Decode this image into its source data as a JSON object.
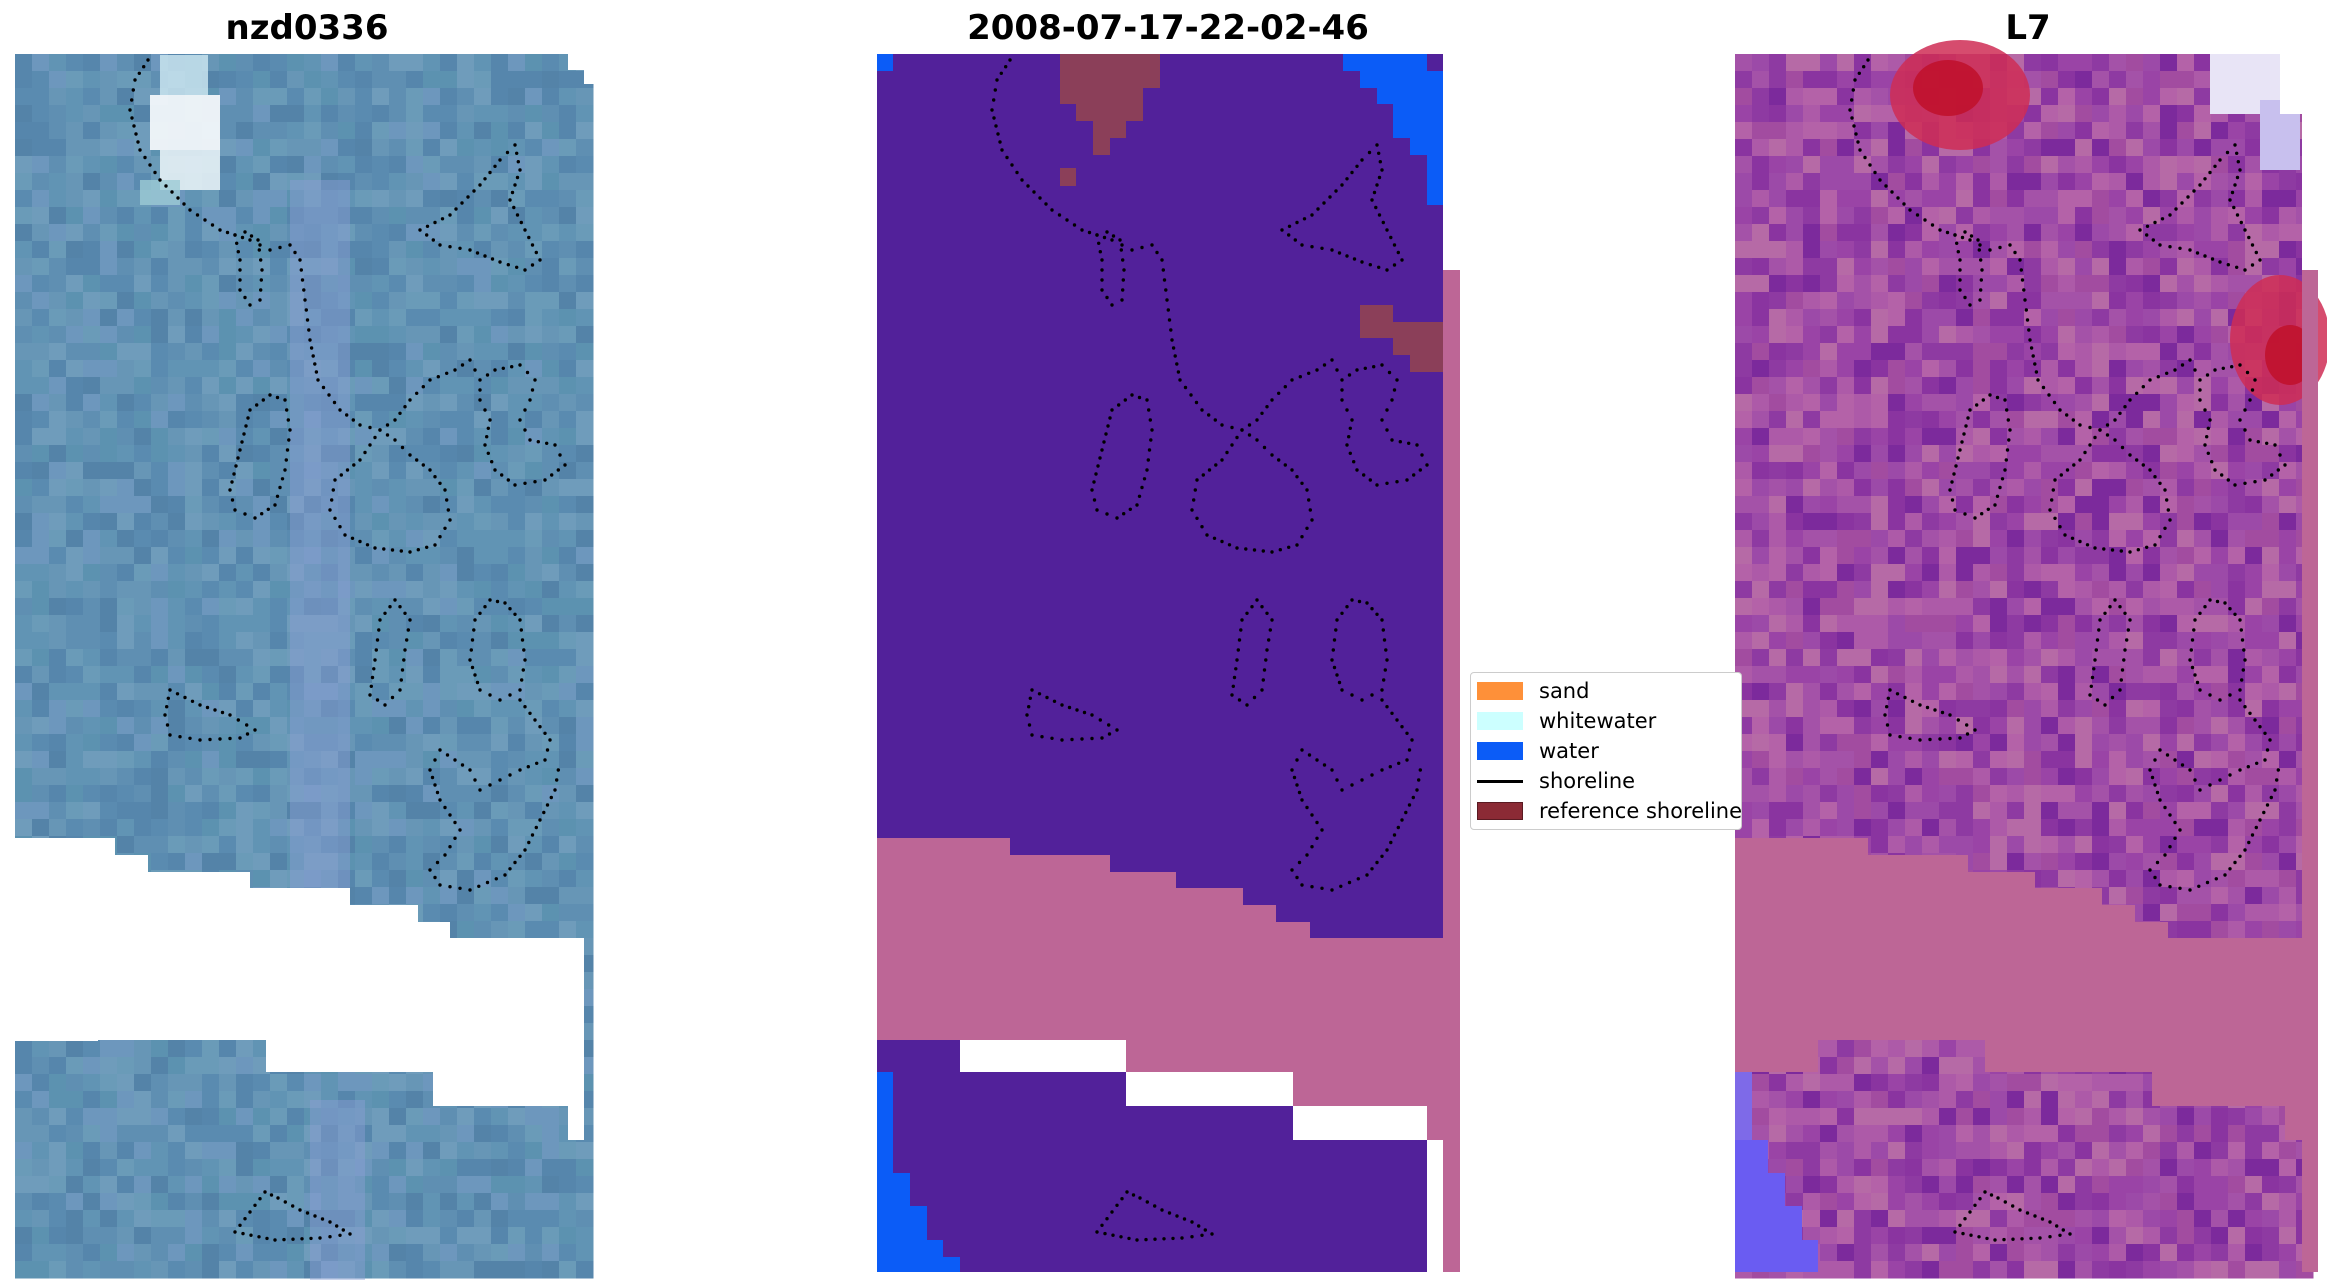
{
  "panels": {
    "left_title": "nzd0336",
    "middle_title": "2008-07-17-22-02-46",
    "right_title": "L7"
  },
  "legend": {
    "items": [
      {
        "label": "sand",
        "color": "#fe9039"
      },
      {
        "label": "whitewater",
        "color": "#ccffff"
      },
      {
        "label": "water",
        "color": "#0b5cf7"
      },
      {
        "label": "shoreline",
        "color": "#000000"
      },
      {
        "label": "reference shoreline",
        "color": "#8b2a35"
      }
    ]
  },
  "colors": {
    "rgb_base": "#5f8fb2",
    "class_purple": "#52219a",
    "class_pink": "#bd6696",
    "water_blue": "#0b5cf7",
    "ref_maroon": "#8b3f59",
    "ndwi_base": "#a452a8",
    "ndwi_red": "#cc1a45"
  }
}
